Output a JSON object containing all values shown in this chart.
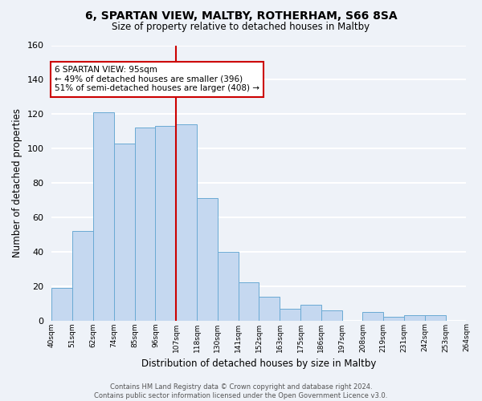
{
  "title": "6, SPARTAN VIEW, MALTBY, ROTHERHAM, S66 8SA",
  "subtitle": "Size of property relative to detached houses in Maltby",
  "xlabel": "Distribution of detached houses by size in Maltby",
  "ylabel": "Number of detached properties",
  "bin_labels": [
    "40sqm",
    "51sqm",
    "62sqm",
    "74sqm",
    "85sqm",
    "96sqm",
    "107sqm",
    "118sqm",
    "130sqm",
    "141sqm",
    "152sqm",
    "163sqm",
    "175sqm",
    "186sqm",
    "197sqm",
    "208sqm",
    "219sqm",
    "231sqm",
    "242sqm",
    "253sqm",
    "264sqm"
  ],
  "bar_heights": [
    19,
    52,
    121,
    103,
    112,
    113,
    114,
    71,
    40,
    22,
    14,
    7,
    9,
    6,
    0,
    5,
    2,
    3,
    3,
    0
  ],
  "bar_color": "#c5d8f0",
  "bar_edge_color": "#6aaad4",
  "vline_color": "#cc0000",
  "annotation_text": "6 SPARTAN VIEW: 95sqm\n← 49% of detached houses are smaller (396)\n51% of semi-detached houses are larger (408) →",
  "annotation_box_color": "white",
  "annotation_box_edge_color": "#cc0000",
  "ylim": [
    0,
    160
  ],
  "yticks": [
    0,
    20,
    40,
    60,
    80,
    100,
    120,
    140,
    160
  ],
  "footer_text": "Contains HM Land Registry data © Crown copyright and database right 2024.\nContains public sector information licensed under the Open Government Licence v3.0.",
  "background_color": "#eef2f8",
  "grid_color": "white"
}
